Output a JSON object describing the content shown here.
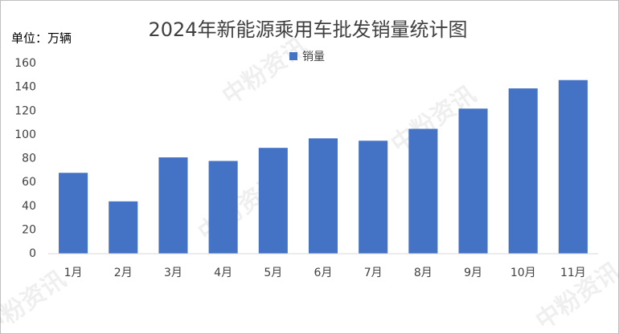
{
  "chart_data": {
    "type": "bar",
    "title": "2024年新能源乘用车批发销量统计图",
    "y_unit_label": "单位：万辆",
    "categories": [
      "1月",
      "2月",
      "3月",
      "4月",
      "5月",
      "6月",
      "7月",
      "8月",
      "9月",
      "10月",
      "11月"
    ],
    "series": [
      {
        "name": "销量",
        "color": "#4472c4",
        "values": [
          68,
          44,
          81,
          78,
          89,
          97,
          95,
          105,
          122,
          139,
          146
        ]
      }
    ],
    "ylim": [
      0,
      160
    ],
    "yticks": [
      0,
      20,
      40,
      60,
      80,
      100,
      120,
      140,
      160
    ],
    "grid": false,
    "legend": "top",
    "watermark": "中粉资讯"
  }
}
